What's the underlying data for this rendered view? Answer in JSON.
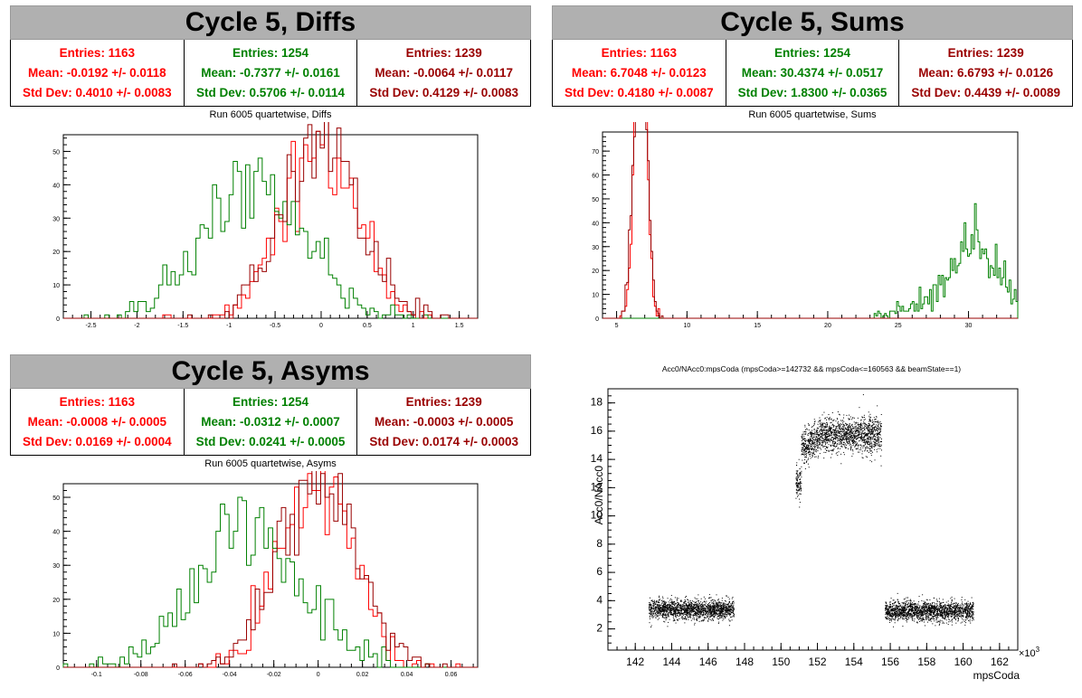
{
  "colors": {
    "red": "#ff0000",
    "green": "#008000",
    "darkred": "#990000",
    "black": "#000000"
  },
  "panels": {
    "diffs": {
      "title": "Cycle 5, Diffs",
      "subtitle": "Run 6005 quartetwise, Diffs",
      "stats": [
        {
          "entries": "Entries: 1163",
          "mean": "Mean: -0.0192 +/- 0.0118",
          "std": "Std Dev: 0.4010 +/- 0.0083"
        },
        {
          "entries": "Entries: 1254",
          "mean": "Mean: -0.7377 +/- 0.0161",
          "std": "Std Dev: 0.5706 +/- 0.0114"
        },
        {
          "entries": "Entries: 1239",
          "mean": "Mean: -0.0064 +/- 0.0117",
          "std": "Std Dev: 0.4129 +/- 0.0083"
        }
      ]
    },
    "sums": {
      "title": "Cycle 5, Sums",
      "subtitle": "Run 6005 quartetwise, Sums",
      "stats": [
        {
          "entries": "Entries: 1163",
          "mean": "Mean: 6.7048 +/- 0.0123",
          "std": "Std Dev: 0.4180 +/- 0.0087"
        },
        {
          "entries": "Entries: 1254",
          "mean": "Mean: 30.4374 +/- 0.0517",
          "std": "Std Dev: 1.8300 +/- 0.0365"
        },
        {
          "entries": "Entries: 1239",
          "mean": "Mean: 6.6793 +/- 0.0126",
          "std": "Std Dev: 0.4439 +/- 0.0089"
        }
      ]
    },
    "asyms": {
      "title": "Cycle 5, Asyms",
      "subtitle": "Run 6005 quartetwise, Asyms",
      "stats": [
        {
          "entries": "Entries: 1163",
          "mean": "Mean: -0.0008 +/- 0.0005",
          "std": "Std Dev: 0.0169 +/- 0.0004"
        },
        {
          "entries": "Entries: 1254",
          "mean": "Mean: -0.0312 +/- 0.0007",
          "std": "Std Dev: 0.0241 +/- 0.0005"
        },
        {
          "entries": "Entries: 1239",
          "mean": "Mean: -0.0003 +/- 0.0005",
          "std": "Std Dev: 0.0174 +/- 0.0003"
        }
      ]
    },
    "scatter": {
      "title": "Acc0/NAcc0:mpsCoda (mpsCoda>=142732 && mpsCoda<=160563 && beamState==1)",
      "xlabel": "mpsCoda",
      "ylabel": "Acc0/NAcc0",
      "xexp": "×10",
      "xexp_power": "3"
    }
  },
  "chart_data": [
    {
      "type": "bar",
      "title": "Run 6005 quartetwise, Diffs",
      "xlim": [
        -2.8,
        1.7
      ],
      "ylim": [
        0,
        55
      ],
      "xticks": [
        -2.5,
        -2,
        -1.5,
        -1,
        -0.5,
        0,
        0.5,
        1,
        1.5
      ],
      "xticklabels": [
        "-2.5",
        "-2",
        "-1.5",
        "-1",
        "-0.5",
        "0",
        "0.5",
        "1",
        "1.5"
      ],
      "yticks": [
        0,
        10,
        20,
        30,
        40,
        50
      ],
      "yticklabels": [
        "0",
        "10",
        "20",
        "30",
        "40",
        "50"
      ],
      "series": [
        {
          "entries": 1163,
          "mean": -0.0192,
          "std": 0.401,
          "color": "#ff0000"
        },
        {
          "entries": 1254,
          "mean": -0.7377,
          "std": 0.5706,
          "color": "#008000"
        },
        {
          "entries": 1239,
          "mean": -0.0064,
          "std": 0.4129,
          "color": "#990000"
        }
      ]
    },
    {
      "type": "bar",
      "title": "Run 6005 quartetwise, Sums",
      "xlim": [
        4,
        33.5
      ],
      "ylim": [
        0,
        78
      ],
      "xticks": [
        5,
        10,
        15,
        20,
        25,
        30
      ],
      "xticklabels": [
        "5",
        "10",
        "15",
        "20",
        "25",
        "30"
      ],
      "yticks": [
        0,
        10,
        20,
        30,
        40,
        50,
        60,
        70
      ],
      "yticklabels": [
        "0",
        "10",
        "20",
        "30",
        "40",
        "50",
        "60",
        "70"
      ],
      "series": [
        {
          "entries": 1163,
          "mean": 6.7048,
          "std": 0.418,
          "color": "#ff0000"
        },
        {
          "entries": 1254,
          "mean": 30.4374,
          "std": 1.83,
          "color": "#008000"
        },
        {
          "entries": 1239,
          "mean": 6.6793,
          "std": 0.4439,
          "color": "#990000"
        }
      ]
    },
    {
      "type": "bar",
      "title": "Run 6005 quartetwise, Asyms",
      "xlim": [
        -0.115,
        0.072
      ],
      "ylim": [
        0,
        54
      ],
      "xticks": [
        -0.1,
        -0.08,
        -0.06,
        -0.04,
        -0.02,
        0,
        0.02,
        0.04,
        0.06
      ],
      "xticklabels": [
        "-0.1",
        "-0.08",
        "-0.06",
        "-0.04",
        "-0.02",
        "0",
        "0.02",
        "0.04",
        "0.06"
      ],
      "yticks": [
        0,
        10,
        20,
        30,
        40,
        50
      ],
      "yticklabels": [
        "0",
        "10",
        "20",
        "30",
        "40",
        "50"
      ],
      "series": [
        {
          "entries": 1163,
          "mean": -0.0008,
          "std": 0.0169,
          "color": "#ff0000"
        },
        {
          "entries": 1254,
          "mean": -0.0312,
          "std": 0.0241,
          "color": "#008000"
        },
        {
          "entries": 1239,
          "mean": -0.0003,
          "std": 0.0174,
          "color": "#990000"
        }
      ]
    },
    {
      "type": "scatter",
      "title": "Acc0/NAcc0:mpsCoda (mpsCoda>=142732 && mpsCoda<=160563 && beamState==1)",
      "xlabel": "mpsCoda",
      "ylabel": "Acc0/NAcc0",
      "xlim": [
        140.5,
        163
      ],
      "ylim": [
        0.5,
        19
      ],
      "xticks": [
        142,
        144,
        146,
        148,
        150,
        152,
        154,
        156,
        158,
        160,
        162
      ],
      "xticklabels": [
        "142",
        "144",
        "146",
        "148",
        "150",
        "152",
        "154",
        "156",
        "158",
        "160",
        "162"
      ],
      "yticks": [
        2,
        4,
        6,
        8,
        10,
        12,
        14,
        16,
        18
      ],
      "yticklabels": [
        "2",
        "4",
        "6",
        "8",
        "10",
        "12",
        "14",
        "16",
        "18"
      ],
      "clusters": [
        {
          "x": [
            142.73,
            147.4
          ],
          "y_center": 3.4,
          "y_spread": 0.35
        },
        {
          "x": [
            150.8,
            151.1
          ],
          "y_center": 12.3,
          "y_spread": 0.6
        },
        {
          "x": [
            151.1,
            155.5
          ],
          "y_center": 15.6,
          "y_spread": 0.6
        },
        {
          "x": [
            155.7,
            160.56
          ],
          "y_center": 3.3,
          "y_spread": 0.35
        }
      ],
      "color": "#000000"
    }
  ]
}
